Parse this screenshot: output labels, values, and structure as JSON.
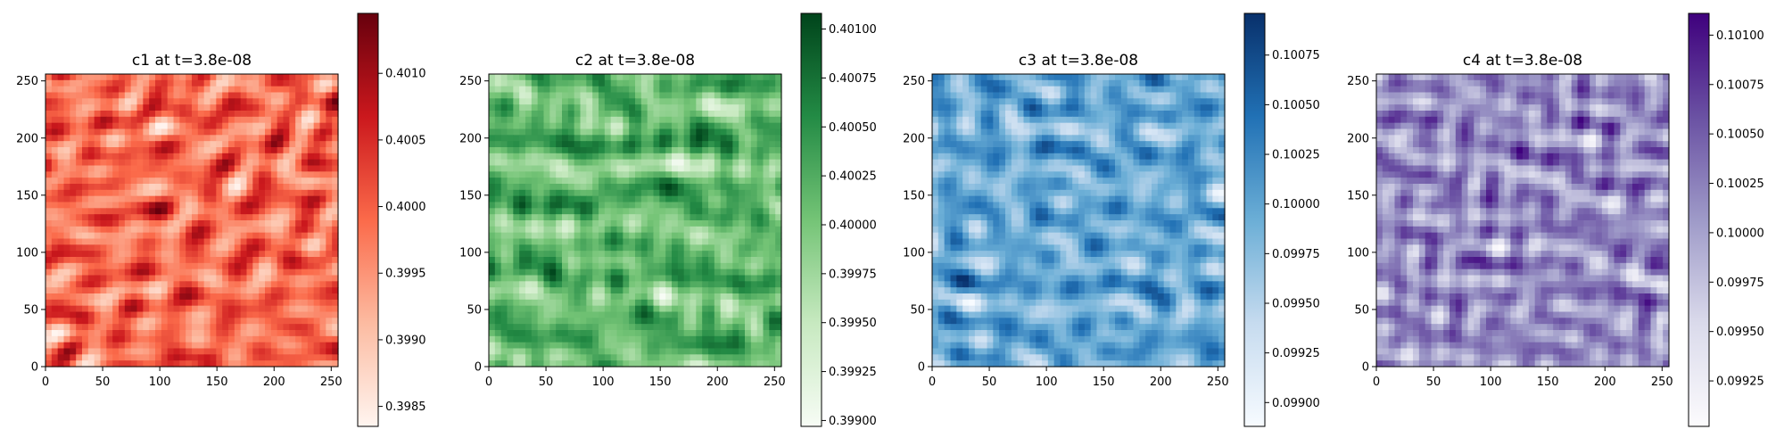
{
  "chart_data": [
    {
      "type": "heatmap",
      "title": "c1 at t=3.8e-08",
      "colormap": "Reds",
      "xlim": [
        0,
        256
      ],
      "ylim": [
        0,
        256
      ],
      "xticks": [
        0,
        50,
        100,
        150,
        200,
        250
      ],
      "yticks": [
        0,
        50,
        100,
        150,
        200,
        250
      ],
      "xtick_labels": [
        "0",
        "50",
        "100",
        "150",
        "200",
        "250"
      ],
      "ytick_labels": [
        "0",
        "50",
        "100",
        "150",
        "200",
        "250"
      ],
      "colorbar": {
        "range": [
          0.39835,
          0.40145
        ],
        "ticks": [
          0.3985,
          0.399,
          0.3995,
          0.4,
          0.4005,
          0.401
        ],
        "tick_labels": [
          "0.3985",
          "0.3990",
          "0.3995",
          "0.4000",
          "0.4005",
          "0.4010"
        ],
        "colors": [
          "#fff5f0",
          "#fcbba1",
          "#fb6a4a",
          "#cb181d",
          "#67000d"
        ]
      },
      "seed": 11
    },
    {
      "type": "heatmap",
      "title": "c2 at t=3.8e-08",
      "colormap": "Greens",
      "xlim": [
        0,
        256
      ],
      "ylim": [
        0,
        256
      ],
      "xticks": [
        0,
        50,
        100,
        150,
        200,
        250
      ],
      "yticks": [
        0,
        50,
        100,
        150,
        200,
        250
      ],
      "xtick_labels": [
        "0",
        "50",
        "100",
        "150",
        "200",
        "250"
      ],
      "ytick_labels": [
        "0",
        "50",
        "100",
        "150",
        "200",
        "250"
      ],
      "colorbar": {
        "range": [
          0.39897,
          0.40108
        ],
        "ticks": [
          0.399,
          0.39925,
          0.3995,
          0.39975,
          0.4,
          0.40025,
          0.4005,
          0.40075,
          0.401
        ],
        "tick_labels": [
          "0.39900",
          "0.39925",
          "0.39950",
          "0.39975",
          "0.40000",
          "0.40025",
          "0.40050",
          "0.40075",
          "0.40100"
        ],
        "colors": [
          "#f7fcf5",
          "#c7e9c0",
          "#74c476",
          "#238b45",
          "#00441b"
        ]
      },
      "seed": 23
    },
    {
      "type": "heatmap",
      "title": "c3 at t=3.8e-08",
      "colormap": "Blues",
      "xlim": [
        0,
        256
      ],
      "ylim": [
        0,
        256
      ],
      "xticks": [
        0,
        50,
        100,
        150,
        200,
        250
      ],
      "yticks": [
        0,
        50,
        100,
        150,
        200,
        250
      ],
      "xtick_labels": [
        "0",
        "50",
        "100",
        "150",
        "200",
        "250"
      ],
      "ytick_labels": [
        "0",
        "50",
        "100",
        "150",
        "200",
        "250"
      ],
      "colorbar": {
        "range": [
          0.09888,
          0.10096
        ],
        "ticks": [
          0.099,
          0.09925,
          0.0995,
          0.09975,
          0.1,
          0.10025,
          0.1005,
          0.10075
        ],
        "tick_labels": [
          "0.09900",
          "0.09925",
          "0.09950",
          "0.09975",
          "0.10000",
          "0.10025",
          "0.10050",
          "0.10075"
        ],
        "colors": [
          "#f7fbff",
          "#c6dbef",
          "#6baed6",
          "#2171b5",
          "#08306b"
        ]
      },
      "seed": 37
    },
    {
      "type": "heatmap",
      "title": "c4 at t=3.8e-08",
      "colormap": "Purples",
      "xlim": [
        0,
        256
      ],
      "ylim": [
        0,
        256
      ],
      "xticks": [
        0,
        50,
        100,
        150,
        200,
        250
      ],
      "yticks": [
        0,
        50,
        100,
        150,
        200,
        250
      ],
      "xtick_labels": [
        "0",
        "50",
        "100",
        "150",
        "200",
        "250"
      ],
      "ytick_labels": [
        "0",
        "50",
        "100",
        "150",
        "200",
        "250"
      ],
      "colorbar": {
        "range": [
          0.09902,
          0.10111
        ],
        "ticks": [
          0.09925,
          0.0995,
          0.09975,
          0.1,
          0.10025,
          0.1005,
          0.10075,
          0.101
        ],
        "tick_labels": [
          "0.09925",
          "0.09950",
          "0.09975",
          "0.10000",
          "0.10025",
          "0.10050",
          "0.10075",
          "0.10100"
        ],
        "colors": [
          "#fcfbfd",
          "#dadaeb",
          "#9e9ac8",
          "#6a51a3",
          "#3f007d"
        ]
      },
      "seed": 51
    }
  ]
}
